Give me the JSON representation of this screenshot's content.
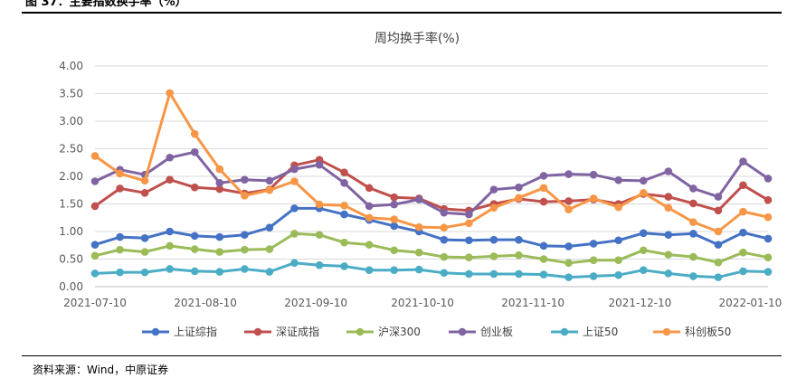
{
  "figure": {
    "header": "图 37：主要指数换手率（%）",
    "source": "资料来源：Wind，中原证券"
  },
  "chart_data": {
    "type": "line",
    "title": "周均换手率(%)",
    "xlabel": "",
    "ylabel": "",
    "ylim": [
      0,
      4
    ],
    "yticks": [
      "0.00",
      "0.50",
      "1.00",
      "1.50",
      "2.00",
      "2.50",
      "3.00",
      "3.50",
      "4.00"
    ],
    "xticks": [
      "2021-07-10",
      "2021-08-10",
      "2021-09-10",
      "2021-10-10",
      "2021-11-10",
      "2021-12-10",
      "2022-01-10"
    ],
    "xtick_positions": [
      0,
      4.43,
      8.86,
      13.14,
      17.57,
      21.86,
      26.29
    ],
    "legend_position": "bottom",
    "grid": "horizontal",
    "series": [
      {
        "name": "上证综指",
        "color": "#4472C4",
        "values": [
          0.76,
          0.9,
          0.88,
          1.0,
          0.92,
          0.9,
          0.94,
          1.07,
          1.42,
          1.42,
          1.31,
          1.21,
          1.1,
          1.0,
          0.85,
          0.84,
          0.85,
          0.85,
          0.74,
          0.73,
          0.78,
          0.84,
          0.97,
          0.94,
          0.96,
          0.76,
          0.98,
          0.87
        ]
      },
      {
        "name": "深证成指",
        "color": "#C0504D",
        "values": [
          1.46,
          1.78,
          1.7,
          1.94,
          1.8,
          1.77,
          1.69,
          1.76,
          2.2,
          2.3,
          2.07,
          1.79,
          1.62,
          1.6,
          1.41,
          1.38,
          1.5,
          1.59,
          1.54,
          1.55,
          1.58,
          1.5,
          1.68,
          1.63,
          1.51,
          1.38,
          1.84,
          1.57
        ]
      },
      {
        "name": "沪深300",
        "color": "#9BBB59",
        "values": [
          0.56,
          0.67,
          0.63,
          0.74,
          0.68,
          0.63,
          0.67,
          0.68,
          0.96,
          0.94,
          0.8,
          0.76,
          0.66,
          0.62,
          0.54,
          0.53,
          0.55,
          0.57,
          0.5,
          0.43,
          0.48,
          0.48,
          0.66,
          0.58,
          0.54,
          0.44,
          0.62,
          0.53
        ]
      },
      {
        "name": "创业板",
        "color": "#8064A2",
        "values": [
          1.91,
          2.12,
          2.03,
          2.34,
          2.44,
          1.88,
          1.94,
          1.92,
          2.13,
          2.21,
          1.88,
          1.46,
          1.49,
          1.58,
          1.34,
          1.31,
          1.76,
          1.8,
          2.01,
          2.04,
          2.03,
          1.93,
          1.92,
          2.09,
          1.78,
          1.63,
          2.27,
          1.96
        ]
      },
      {
        "name": "上证50",
        "color": "#4BACC6",
        "values": [
          0.24,
          0.26,
          0.26,
          0.32,
          0.28,
          0.27,
          0.32,
          0.27,
          0.43,
          0.39,
          0.37,
          0.3,
          0.3,
          0.31,
          0.25,
          0.23,
          0.23,
          0.23,
          0.22,
          0.17,
          0.19,
          0.21,
          0.3,
          0.24,
          0.19,
          0.17,
          0.28,
          0.27
        ]
      },
      {
        "name": "科创板50",
        "color": "#F79646",
        "values": [
          2.37,
          2.05,
          1.92,
          3.51,
          2.77,
          2.13,
          1.65,
          1.75,
          1.91,
          1.49,
          1.47,
          1.25,
          1.22,
          1.08,
          1.07,
          1.15,
          1.43,
          1.61,
          1.79,
          1.4,
          1.6,
          1.44,
          1.7,
          1.43,
          1.17,
          1.0,
          1.36,
          1.26
        ]
      }
    ]
  }
}
